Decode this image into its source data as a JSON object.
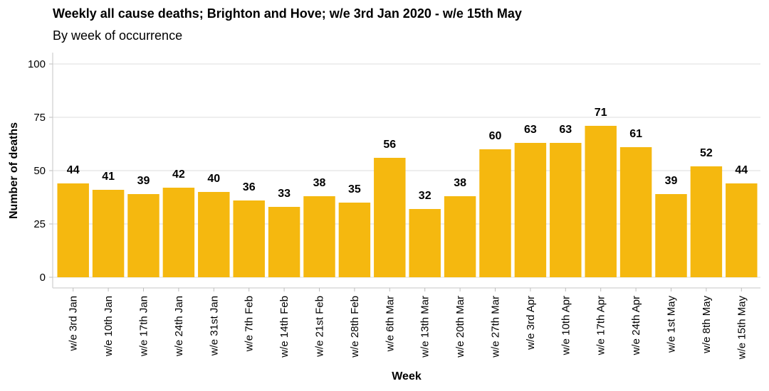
{
  "chart_data": {
    "type": "bar",
    "title": "Weekly all cause deaths; Brighton and Hove; w/e 3rd Jan 2020 - w/e 15th May",
    "subtitle": "By week of occurrence",
    "xlabel": "Week",
    "ylabel": "Number of deaths",
    "ylim": [
      0,
      100
    ],
    "yticks": [
      0,
      25,
      50,
      75,
      100
    ],
    "grid": "horizontal",
    "bar_color": "#F5B80F",
    "categories": [
      "w/e 3rd Jan",
      "w/e 10th Jan",
      "w/e 17th Jan",
      "w/e 24th Jan",
      "w/e 31st Jan",
      "w/e 7th Feb",
      "w/e 14th Feb",
      "w/e 21st Feb",
      "w/e 28th Feb",
      "w/e 6th Mar",
      "w/e 13th Mar",
      "w/e 20th Mar",
      "w/e 27th Mar",
      "w/e 3rd Apr",
      "w/e 10th Apr",
      "w/e 17th Apr",
      "w/e 24th Apr",
      "w/e 1st May",
      "w/e 8th May",
      "w/e 15th May"
    ],
    "values": [
      44,
      41,
      39,
      42,
      40,
      36,
      33,
      38,
      35,
      56,
      32,
      38,
      60,
      63,
      63,
      71,
      61,
      39,
      52,
      44
    ]
  }
}
